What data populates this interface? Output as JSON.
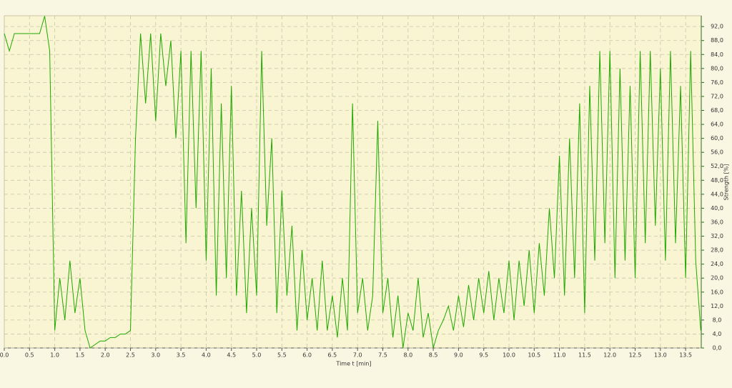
{
  "chart_data": {
    "type": "line",
    "x_label": "Time  t  [min]",
    "y_label": "Strength  [%]",
    "color": "#1fa800",
    "grid": true,
    "y_axis_side": "right",
    "xlim": [
      0,
      13.81
    ],
    "ylim": [
      0,
      95.1
    ],
    "xticks": [
      {
        "value": 0,
        "label": "0.0"
      },
      0.5,
      {
        "value": 1,
        "label": "1.0"
      },
      1.5,
      {
        "value": 2,
        "label": "2.0"
      },
      2.5,
      {
        "value": 3,
        "label": "3.0"
      },
      3.5,
      {
        "value": 4,
        "label": "4.0"
      },
      4.5,
      {
        "value": 5,
        "label": "5.0"
      },
      5.5,
      {
        "value": 6,
        "label": "6.0"
      },
      6.5,
      {
        "value": 7,
        "label": "7.0"
      },
      7.5,
      {
        "value": 8,
        "label": "8.0"
      },
      8.5,
      {
        "value": 9,
        "label": "9.0"
      },
      9.5,
      {
        "value": 10,
        "label": "10.0"
      },
      10.5,
      {
        "value": 11,
        "label": "11.0"
      },
      11.5,
      {
        "value": 12,
        "label": "12.0"
      },
      12.5,
      {
        "value": 13,
        "label": "13.0"
      },
      13.5
    ],
    "yticks": [
      {
        "value": 0,
        "label": "0,0"
      },
      {
        "value": 4,
        "label": "4,0"
      },
      {
        "value": 8,
        "label": "8,0"
      },
      {
        "value": 12,
        "label": "12,0"
      },
      {
        "value": 16,
        "label": "16,0"
      },
      {
        "value": 20,
        "label": "20,0"
      },
      {
        "value": 24,
        "label": "24,0"
      },
      {
        "value": 28,
        "label": "28,0"
      },
      {
        "value": 32,
        "label": "32,0"
      },
      {
        "value": 36,
        "label": "36,0"
      },
      {
        "value": 40,
        "label": "40,0"
      },
      {
        "value": 44,
        "label": "44,0"
      },
      {
        "value": 48,
        "label": "48,0"
      },
      {
        "value": 52,
        "label": "52,0"
      },
      {
        "value": 56,
        "label": "56,0"
      },
      {
        "value": 60,
        "label": "60,0"
      },
      {
        "value": 64,
        "label": "64,0"
      },
      {
        "value": 68,
        "label": "68,0"
      },
      {
        "value": 72,
        "label": "72,0"
      },
      {
        "value": 76,
        "label": "76,0"
      },
      {
        "value": 80,
        "label": "80,0"
      },
      {
        "value": 84,
        "label": "84,0"
      },
      {
        "value": 88,
        "label": "88,0"
      },
      {
        "value": 92,
        "label": "92,0"
      }
    ],
    "x": [
      0,
      0.1,
      0.2,
      0.3,
      0.4,
      0.5,
      0.6,
      0.7,
      0.8,
      0.9,
      1,
      1.1,
      1.2,
      1.3,
      1.4,
      1.5,
      1.6,
      1.7,
      1.8,
      1.9,
      2,
      2.1,
      2.2,
      2.3,
      2.4,
      2.5,
      2.6,
      2.7,
      2.8,
      2.9,
      3,
      3.1,
      3.2,
      3.3,
      3.4,
      3.5,
      3.6,
      3.7,
      3.8,
      3.9,
      4,
      4.1,
      4.2,
      4.3,
      4.4,
      4.5,
      4.6,
      4.7,
      4.8,
      4.9,
      5,
      5.1,
      5.2,
      5.3,
      5.4,
      5.5,
      5.6,
      5.7,
      5.8,
      5.9,
      6,
      6.1,
      6.2,
      6.3,
      6.4,
      6.5,
      6.6,
      6.7,
      6.8,
      6.9,
      7,
      7.1,
      7.2,
      7.3,
      7.4,
      7.5,
      7.6,
      7.7,
      7.8,
      7.9,
      8,
      8.1,
      8.2,
      8.3,
      8.4,
      8.5,
      8.6,
      8.7,
      8.8,
      8.9,
      9,
      9.1,
      9.2,
      9.3,
      9.4,
      9.5,
      9.6,
      9.7,
      9.8,
      9.9,
      10,
      10.1,
      10.2,
      10.3,
      10.4,
      10.5,
      10.6,
      10.7,
      10.8,
      10.9,
      11,
      11.1,
      11.2,
      11.3,
      11.4,
      11.5,
      11.6,
      11.7,
      11.8,
      11.9,
      12,
      12.1,
      12.2,
      12.3,
      12.4,
      12.5,
      12.6,
      12.7,
      12.8,
      12.9,
      13,
      13.1,
      13.2,
      13.3,
      13.4,
      13.5,
      13.6,
      13.7,
      13.8
    ],
    "values": [
      90,
      85,
      90,
      90,
      90,
      90,
      90,
      90,
      95,
      85,
      5,
      20,
      8,
      25,
      10,
      20,
      5,
      0,
      1,
      2,
      2,
      3,
      3,
      4,
      4,
      5,
      60,
      90,
      70,
      90,
      65,
      90,
      75,
      88,
      60,
      85,
      30,
      85,
      40,
      85,
      25,
      80,
      15,
      70,
      20,
      75,
      15,
      45,
      10,
      40,
      15,
      85,
      35,
      60,
      10,
      45,
      15,
      35,
      5,
      28,
      8,
      20,
      5,
      25,
      5,
      15,
      3,
      20,
      5,
      70,
      10,
      20,
      5,
      15,
      65,
      10,
      20,
      3,
      15,
      0,
      10,
      5,
      20,
      3,
      10,
      0,
      5,
      8,
      12,
      5,
      15,
      6,
      18,
      8,
      20,
      10,
      22,
      8,
      20,
      10,
      25,
      8,
      25,
      12,
      28,
      10,
      30,
      15,
      40,
      20,
      55,
      15,
      60,
      20,
      70,
      10,
      75,
      25,
      85,
      30,
      85,
      20,
      80,
      25,
      75,
      20,
      85,
      30,
      85,
      35,
      80,
      25,
      85,
      30,
      75,
      20,
      85,
      25,
      5
    ]
  }
}
